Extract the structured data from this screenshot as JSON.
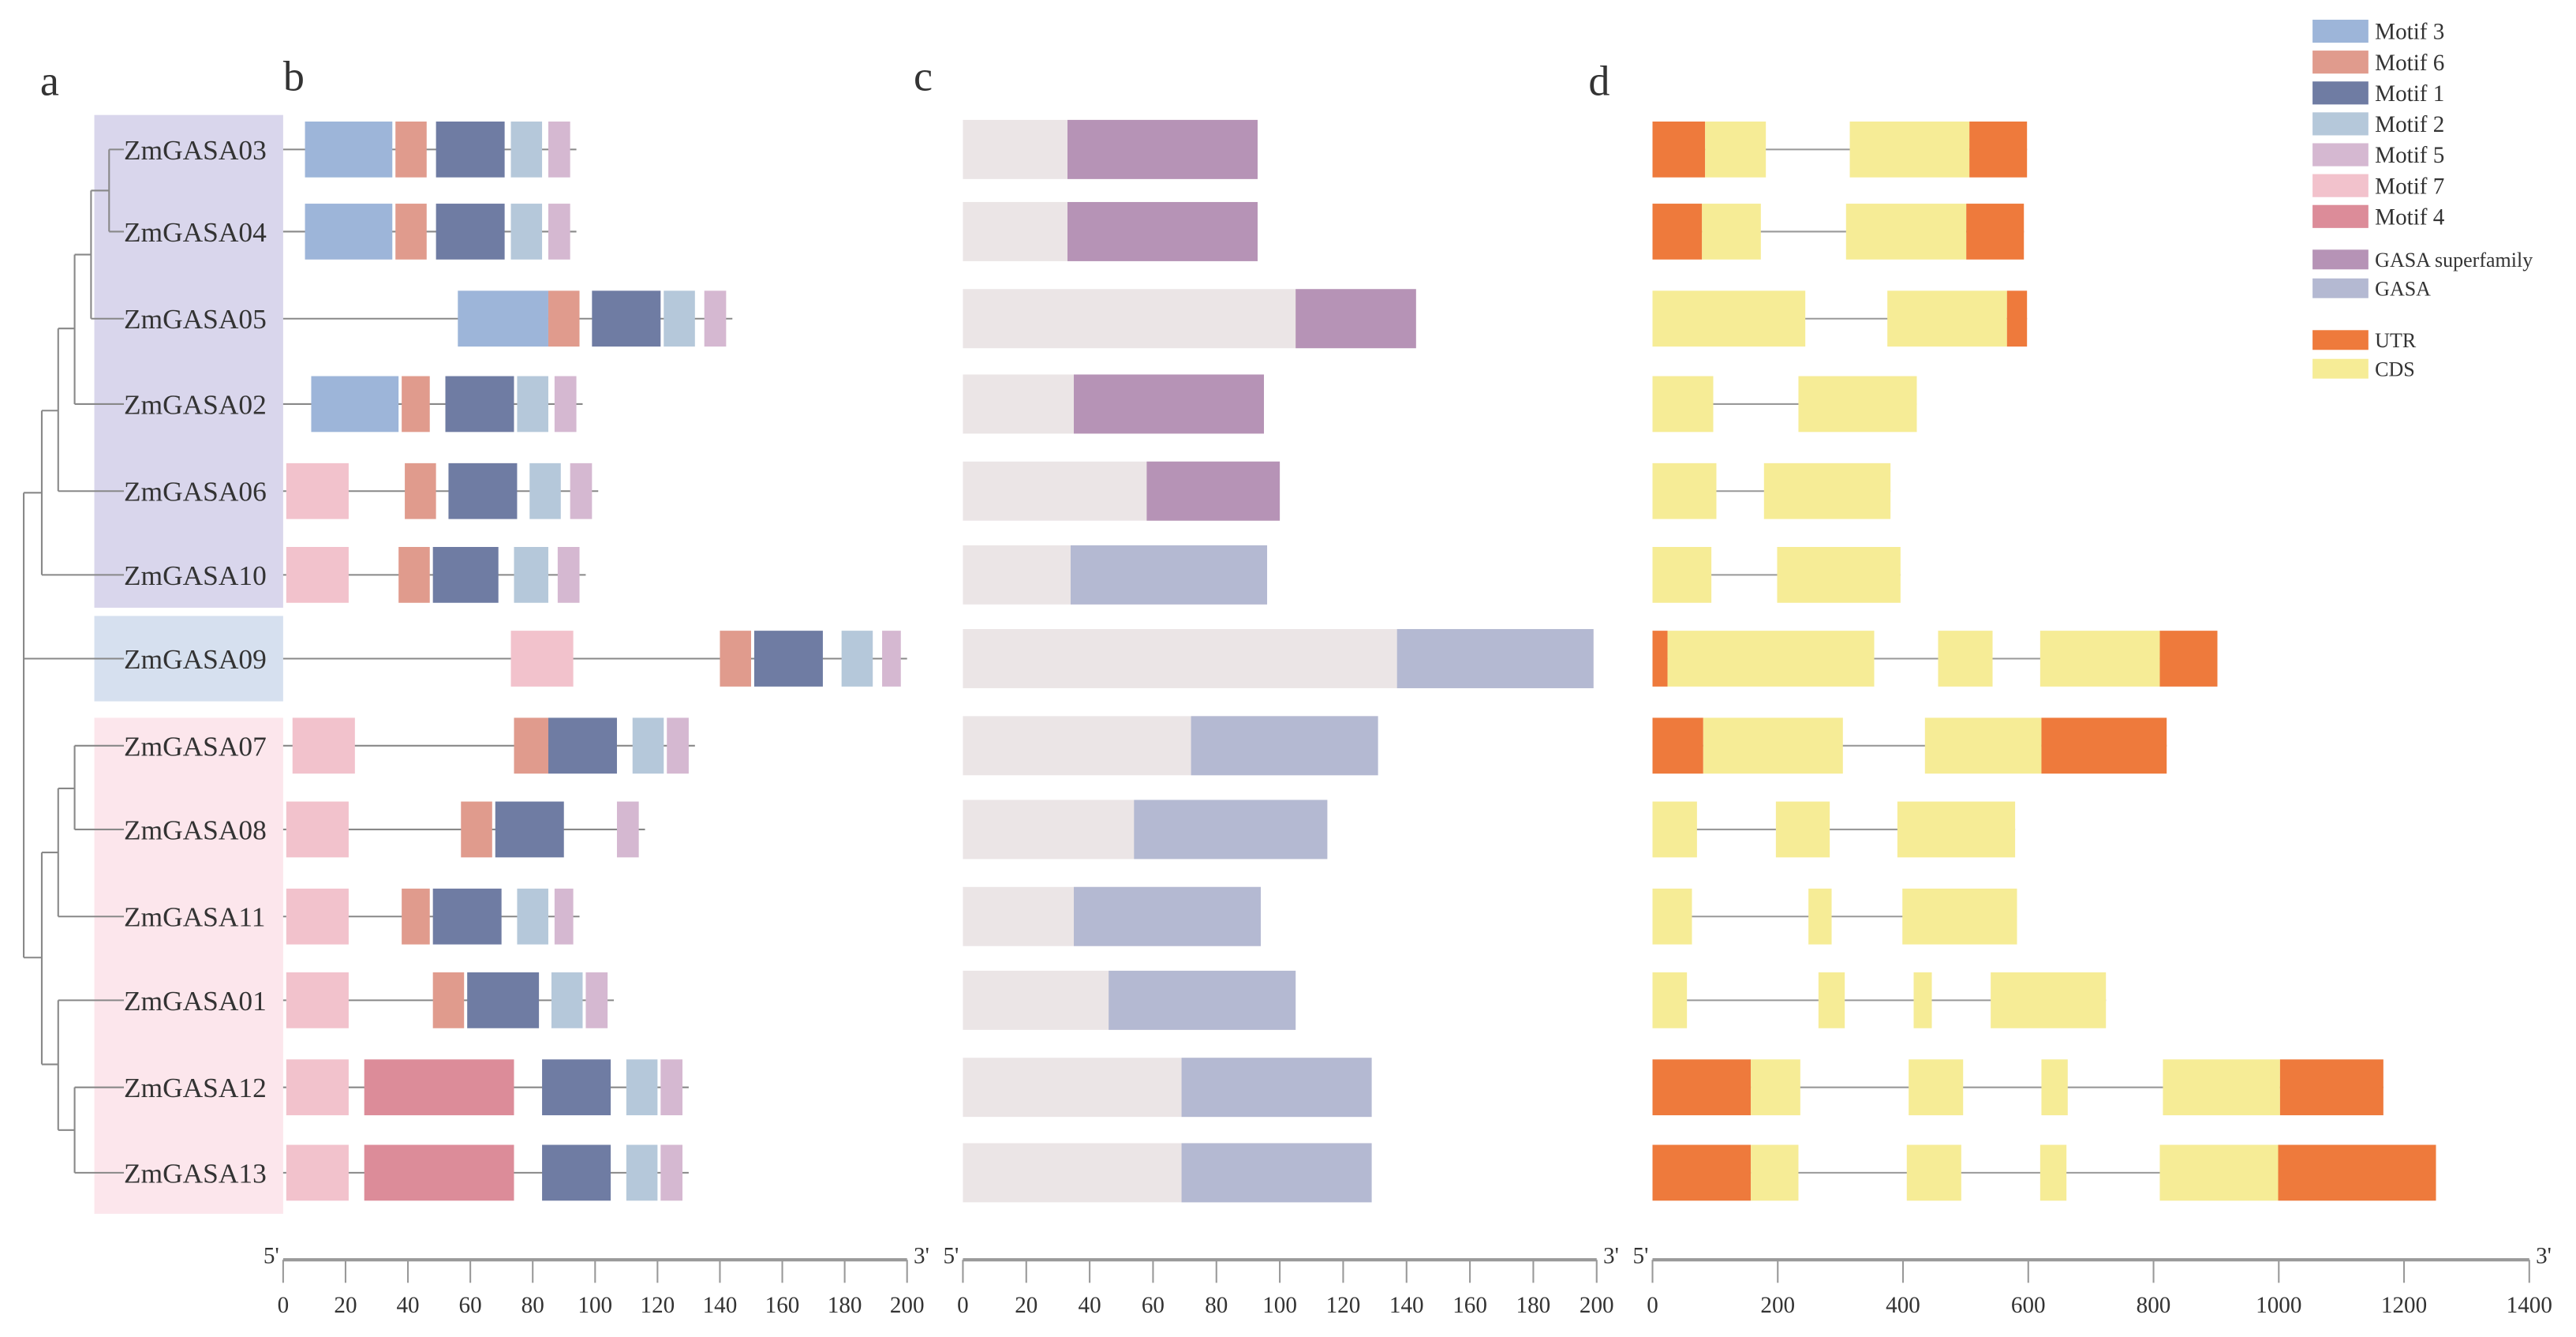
{
  "panel_letters": {
    "a": "a",
    "b": "b",
    "c": "c",
    "d": "d"
  },
  "colors": {
    "Motif 3": "#9db5d9",
    "Motif 6": "#e09b8d",
    "Motif 1": "#6f7ca3",
    "Motif 2": "#b5c8da",
    "Motif 5": "#d5b8d1",
    "Motif 7": "#f2c2cc",
    "Motif 4": "#dc8c99",
    "GASA superfamily": "#b693b6",
    "GASA": "#b4b9d2",
    "UTR": "#ee7a3c",
    "CDS": "#f6ec96",
    "protein_bg": "#ebe5e6",
    "group1": "#d9d6ec",
    "group2": "#d6e0ef",
    "group3": "#fce6ec"
  },
  "legend": {
    "motifs": [
      "Motif 3",
      "Motif 6",
      "Motif 1",
      "Motif 2",
      "Motif 5",
      "Motif 7",
      "Motif 4"
    ],
    "domains": [
      "GASA superfamily",
      "GASA"
    ],
    "structure": [
      "UTR",
      "CDS"
    ]
  },
  "axes": {
    "b": {
      "min": 0,
      "max": 200,
      "ticks": [
        "0",
        "20",
        "40",
        "60",
        "80",
        "100",
        "120",
        "140",
        "160",
        "180",
        "200"
      ],
      "start": "5'",
      "end": "3'"
    },
    "c": {
      "min": 0,
      "max": 200,
      "ticks": [
        "0",
        "20",
        "40",
        "60",
        "80",
        "100",
        "120",
        "140",
        "160",
        "180",
        "200"
      ],
      "start": "5'",
      "end": "3'"
    },
    "d": {
      "min": 0,
      "max": 1400,
      "ticks": [
        "0",
        "200",
        "400",
        "600",
        "800",
        "1000",
        "1200",
        "1400"
      ],
      "start": "5'",
      "end": "3'"
    }
  },
  "genes": [
    {
      "name": "ZmGASA03",
      "length": 94,
      "motifs": [
        [
          "Motif 3",
          7,
          35
        ],
        [
          "Motif 6",
          36,
          46
        ],
        [
          "Motif 1",
          49,
          71
        ],
        [
          "Motif 2",
          73,
          83
        ],
        [
          "Motif 5",
          85,
          92
        ]
      ],
      "protein": {
        "length": 93,
        "domain": [
          "GASA superfamily",
          33,
          93
        ]
      },
      "structure": [
        [
          "UTR",
          0,
          84
        ],
        [
          "CDS",
          84,
          181
        ],
        [
          "CDS",
          315,
          506
        ],
        [
          "UTR",
          506,
          598
        ]
      ]
    },
    {
      "name": "ZmGASA04",
      "length": 94,
      "motifs": [
        [
          "Motif 3",
          7,
          35
        ],
        [
          "Motif 6",
          36,
          46
        ],
        [
          "Motif 1",
          49,
          71
        ],
        [
          "Motif 2",
          73,
          83
        ],
        [
          "Motif 5",
          85,
          92
        ]
      ],
      "protein": {
        "length": 93,
        "domain": [
          "GASA superfamily",
          33,
          93
        ]
      },
      "structure": [
        [
          "UTR",
          0,
          79
        ],
        [
          "CDS",
          79,
          173
        ],
        [
          "CDS",
          309,
          501
        ],
        [
          "UTR",
          501,
          593
        ]
      ]
    },
    {
      "name": "ZmGASA05",
      "length": 144,
      "motifs": [
        [
          "Motif 3",
          56,
          85
        ],
        [
          "Motif 6",
          85,
          95
        ],
        [
          "Motif 1",
          99,
          121
        ],
        [
          "Motif 2",
          122,
          132
        ],
        [
          "Motif 5",
          135,
          142
        ]
      ],
      "protein": {
        "length": 143,
        "domain": [
          "GASA superfamily",
          105,
          143
        ]
      },
      "structure": [
        [
          "CDS",
          0,
          244
        ],
        [
          "CDS",
          375,
          566
        ],
        [
          "UTR",
          566,
          598
        ]
      ]
    },
    {
      "name": "ZmGASA02",
      "length": 96,
      "motifs": [
        [
          "Motif 3",
          9,
          37
        ],
        [
          "Motif 6",
          38,
          47
        ],
        [
          "Motif 1",
          52,
          74
        ],
        [
          "Motif 2",
          75,
          85
        ],
        [
          "Motif 5",
          87,
          94
        ]
      ],
      "protein": {
        "length": 95,
        "domain": [
          "GASA superfamily",
          35,
          95
        ]
      },
      "structure": [
        [
          "CDS",
          0,
          97
        ],
        [
          "CDS",
          233,
          422
        ]
      ]
    },
    {
      "name": "ZmGASA06",
      "length": 101,
      "motifs": [
        [
          "Motif 7",
          1,
          21
        ],
        [
          "Motif 6",
          39,
          49
        ],
        [
          "Motif 1",
          53,
          75
        ],
        [
          "Motif 2",
          79,
          89
        ],
        [
          "Motif 5",
          92,
          99
        ]
      ],
      "protein": {
        "length": 100,
        "domain": [
          "GASA superfamily",
          58,
          100
        ]
      },
      "structure": [
        [
          "CDS",
          0,
          102
        ],
        [
          "CDS",
          178,
          380
        ]
      ]
    },
    {
      "name": "ZmGASA10",
      "length": 97,
      "motifs": [
        [
          "Motif 7",
          1,
          21
        ],
        [
          "Motif 6",
          37,
          47
        ],
        [
          "Motif 1",
          48,
          69
        ],
        [
          "Motif 2",
          74,
          85
        ],
        [
          "Motif 5",
          88,
          95
        ]
      ],
      "protein": {
        "length": 96,
        "domain": [
          "GASA",
          34,
          96
        ]
      },
      "structure": [
        [
          "CDS",
          0,
          94
        ],
        [
          "CDS",
          199,
          396
        ]
      ]
    },
    {
      "name": "ZmGASA09",
      "length": 200,
      "motifs": [
        [
          "Motif 7",
          73,
          93
        ],
        [
          "Motif 6",
          140,
          150
        ],
        [
          "Motif 1",
          151,
          173
        ],
        [
          "Motif 2",
          179,
          189
        ],
        [
          "Motif 5",
          192,
          198
        ]
      ],
      "protein": {
        "length": 199,
        "domain": [
          "GASA",
          137,
          199
        ]
      },
      "structure": [
        [
          "UTR",
          0,
          24
        ],
        [
          "CDS",
          24,
          354
        ],
        [
          "CDS",
          456,
          543
        ],
        [
          "CDS",
          619,
          810
        ],
        [
          "UTR",
          810,
          902
        ]
      ]
    },
    {
      "name": "ZmGASA07",
      "length": 132,
      "motifs": [
        [
          "Motif 7",
          3,
          23
        ],
        [
          "Motif 6",
          74,
          85
        ],
        [
          "Motif 1",
          85,
          107
        ],
        [
          "Motif 2",
          112,
          122
        ],
        [
          "Motif 5",
          123,
          130
        ]
      ],
      "protein": {
        "length": 131,
        "domain": [
          "GASA",
          72,
          131
        ]
      },
      "structure": [
        [
          "UTR",
          0,
          81
        ],
        [
          "CDS",
          81,
          304
        ],
        [
          "CDS",
          435,
          621
        ],
        [
          "UTR",
          621,
          821
        ]
      ]
    },
    {
      "name": "ZmGASA08",
      "length": 116,
      "motifs": [
        [
          "Motif 7",
          1,
          21
        ],
        [
          "Motif 6",
          57,
          67
        ],
        [
          "Motif 1",
          68,
          90
        ],
        [
          "Motif 5",
          107,
          114
        ]
      ],
      "protein": {
        "length": 115,
        "domain": [
          "GASA",
          54,
          115
        ]
      },
      "structure": [
        [
          "CDS",
          0,
          71
        ],
        [
          "CDS",
          197,
          283
        ],
        [
          "CDS",
          391,
          579
        ]
      ]
    },
    {
      "name": "ZmGASA11",
      "length": 95,
      "motifs": [
        [
          "Motif 7",
          1,
          21
        ],
        [
          "Motif 6",
          38,
          47
        ],
        [
          "Motif 1",
          48,
          70
        ],
        [
          "Motif 2",
          75,
          85
        ],
        [
          "Motif 5",
          87,
          93
        ]
      ],
      "protein": {
        "length": 94,
        "domain": [
          "GASA",
          35,
          94
        ]
      },
      "structure": [
        [
          "CDS",
          0,
          63
        ],
        [
          "CDS",
          249,
          286
        ],
        [
          "CDS",
          399,
          582
        ]
      ]
    },
    {
      "name": "ZmGASA01",
      "length": 106,
      "motifs": [
        [
          "Motif 7",
          1,
          21
        ],
        [
          "Motif 6",
          48,
          58
        ],
        [
          "Motif 1",
          59,
          82
        ],
        [
          "Motif 2",
          86,
          96
        ],
        [
          "Motif 5",
          97,
          104
        ]
      ],
      "protein": {
        "length": 105,
        "domain": [
          "GASA",
          46,
          105
        ]
      },
      "structure": [
        [
          "CDS",
          0,
          55
        ],
        [
          "CDS",
          265,
          307
        ],
        [
          "CDS",
          417,
          446
        ],
        [
          "CDS",
          540,
          724
        ]
      ]
    },
    {
      "name": "ZmGASA12",
      "length": 130,
      "motifs": [
        [
          "Motif 7",
          1,
          21
        ],
        [
          "Motif 4",
          26,
          74
        ],
        [
          "Motif 1",
          83,
          105
        ],
        [
          "Motif 2",
          110,
          120
        ],
        [
          "Motif 5",
          121,
          128
        ]
      ],
      "protein": {
        "length": 129,
        "domain": [
          "GASA",
          69,
          129
        ]
      },
      "structure": [
        [
          "UTR",
          0,
          157
        ],
        [
          "CDS",
          157,
          236
        ],
        [
          "CDS",
          409,
          496
        ],
        [
          "CDS",
          621,
          663
        ],
        [
          "CDS",
          815,
          1002
        ],
        [
          "UTR",
          1002,
          1167
        ]
      ]
    },
    {
      "name": "ZmGASA13",
      "length": 130,
      "motifs": [
        [
          "Motif 7",
          1,
          21
        ],
        [
          "Motif 4",
          26,
          74
        ],
        [
          "Motif 1",
          83,
          105
        ],
        [
          "Motif 2",
          110,
          120
        ],
        [
          "Motif 5",
          121,
          128
        ]
      ],
      "protein": {
        "length": 129,
        "domain": [
          "GASA",
          69,
          129
        ]
      },
      "structure": [
        [
          "UTR",
          0,
          157
        ],
        [
          "CDS",
          157,
          233
        ],
        [
          "CDS",
          406,
          493
        ],
        [
          "CDS",
          619,
          661
        ],
        [
          "CDS",
          810,
          999
        ],
        [
          "UTR",
          999,
          1251
        ]
      ]
    }
  ]
}
